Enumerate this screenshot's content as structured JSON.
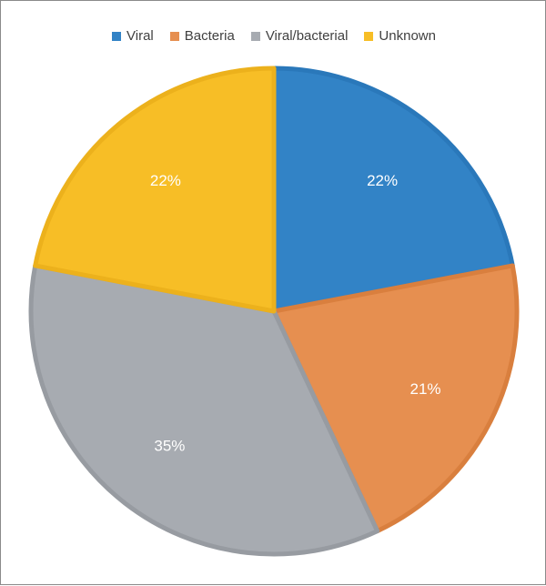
{
  "chart_data": {
    "type": "pie",
    "title": "",
    "legend_position": "top",
    "slices": [
      {
        "name": "Viral",
        "value": 22,
        "label": "22%",
        "color": "#3283c6",
        "edge": "#2a78ba"
      },
      {
        "name": "Bacteria",
        "value": 21,
        "label": "21%",
        "color": "#e68f50",
        "edge": "#d97f3e"
      },
      {
        "name": "Viral/bacterial",
        "value": 35,
        "label": "35%",
        "color": "#a7abb1",
        "edge": "#979ba1"
      },
      {
        "name": "Unknown",
        "value": 22,
        "label": "22%",
        "color": "#f7be26",
        "edge": "#ecb11c"
      }
    ]
  }
}
